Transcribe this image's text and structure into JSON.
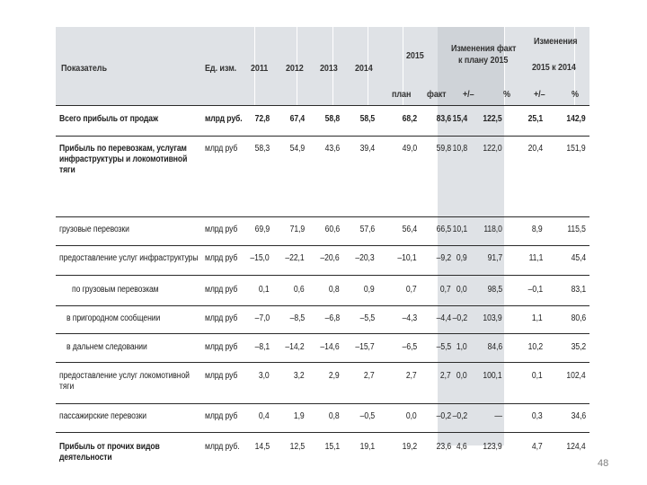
{
  "headers": {
    "indicator": "Показатель",
    "unit": "Ед. изм.",
    "years": [
      "2011",
      "2012",
      "2013",
      "2014"
    ],
    "year_2015": "2015",
    "plan": "план",
    "fact": "факт",
    "change_fact_plan_line1": "Изменения факт",
    "change_fact_plan_line2": "к плану 2015",
    "change_2015_line1": "Изменения",
    "change_2015_line2": "2015 к 2014",
    "delta_1": "+/–",
    "pct_1": "%",
    "delta_2": "+/–",
    "pct_2": "%"
  },
  "rows": [
    {
      "label": "Всего прибыль от продаж",
      "unit": "млрд руб.",
      "bold": true,
      "v": [
        "72,8",
        "67,4",
        "58,8",
        "58,5",
        "68,2",
        "83,6",
        "15,4",
        "122,5",
        "25,1",
        "142,9"
      ]
    },
    {
      "label": "Прибыль по перевозкам, услугам инфраструктуры и локомотивной тяги",
      "unit": "млрд руб",
      "bold": true,
      "v": [
        "58,3",
        "54,9",
        "43,6",
        "39,4",
        "49,0",
        "59,8",
        "10,8",
        "122,0",
        "20,4",
        "151,9"
      ]
    },
    {
      "label": "грузовые перевозки",
      "unit": "млрд руб",
      "bold": false,
      "v": [
        "69,9",
        "71,9",
        "60,6",
        "57,6",
        "56,4",
        "66,5",
        "10,1",
        "118,0",
        "8,9",
        "115,5"
      ]
    },
    {
      "label": "предоставление услуг инфраструктуры",
      "unit": "млрд руб",
      "bold": false,
      "v": [
        "–15,0",
        "–22,1",
        "–20,6",
        "–20,3",
        "–10,1",
        "–9,2",
        "0,9",
        "91,7",
        "11,1",
        "45,4"
      ]
    },
    {
      "label": "по грузовым перевозкам",
      "unit": "млрд руб",
      "bold": false,
      "v": [
        "0,1",
        "0,6",
        "0,8",
        "0,9",
        "0,7",
        "0,7",
        "0,0",
        "98,5",
        "–0,1",
        "83,1"
      ]
    },
    {
      "label": "в пригородном сообщении",
      "unit": "млрд руб",
      "bold": false,
      "v": [
        "–7,0",
        "–8,5",
        "–6,8",
        "–5,5",
        "–4,3",
        "–4,4",
        "–0,2",
        "103,9",
        "1,1",
        "80,6"
      ]
    },
    {
      "label": "в дальнем следовании",
      "unit": "млрд руб",
      "bold": false,
      "v": [
        "–8,1",
        "–14,2",
        "–14,6",
        "–15,7",
        "–6,5",
        "–5,5",
        "1,0",
        "84,6",
        "10,2",
        "35,2"
      ]
    },
    {
      "label": "предоставление услуг локомотивной тяги",
      "unit": "млрд руб",
      "bold": false,
      "v": [
        "3,0",
        "3,2",
        "2,9",
        "2,7",
        "2,7",
        "2,7",
        "0,0",
        "100,1",
        "0,1",
        "102,4"
      ]
    },
    {
      "label": "пассажирские перевозки",
      "unit": "млрд руб",
      "bold": false,
      "v": [
        "0,4",
        "1,9",
        "0,8",
        "–0,5",
        "0,0",
        "–0,2",
        "–0,2",
        "—",
        "0,3",
        "34,6"
      ]
    },
    {
      "label": "Прибыль от прочих видов деятельности",
      "unit": "млрд руб.",
      "bold": true,
      "v": [
        "14,5",
        "12,5",
        "15,1",
        "19,1",
        "19,2",
        "23,6",
        "4,6",
        "123,9",
        "4,7",
        "124,4"
      ]
    }
  ],
  "page_number": "48"
}
